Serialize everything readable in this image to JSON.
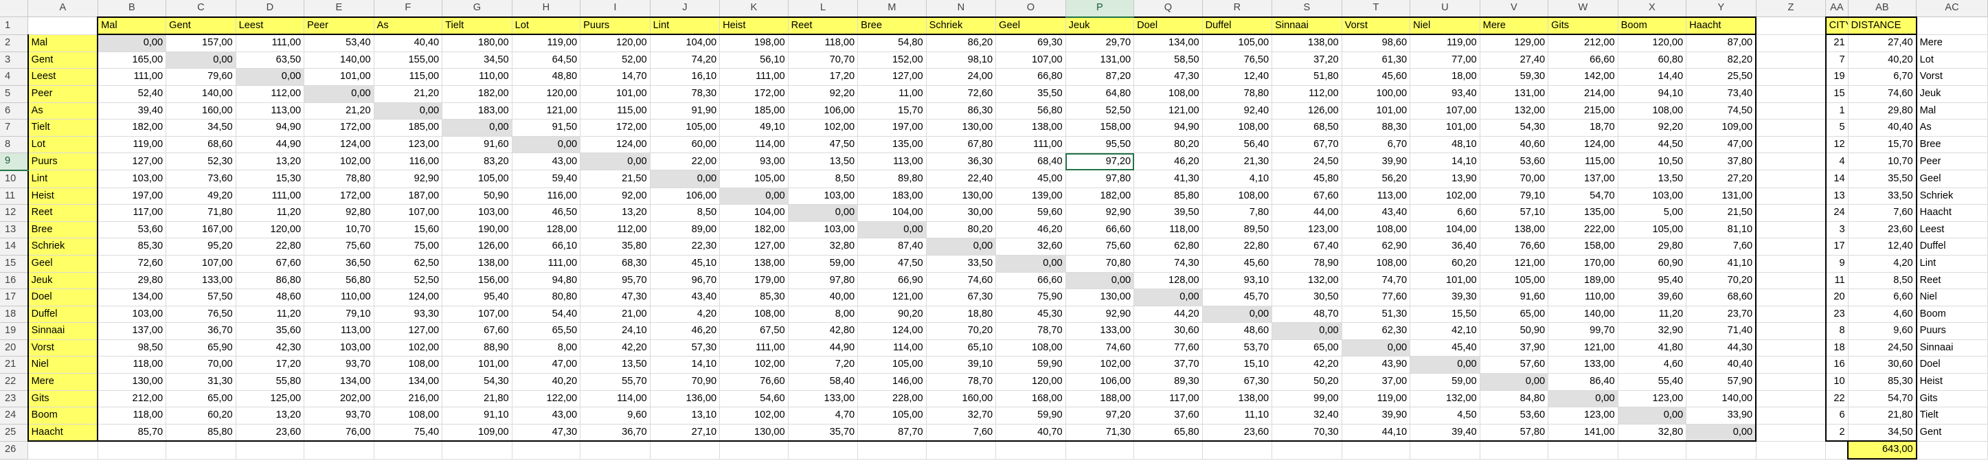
{
  "sheet": {
    "columns": [
      "A",
      "B",
      "C",
      "D",
      "E",
      "F",
      "G",
      "H",
      "I",
      "J",
      "K",
      "L",
      "M",
      "N",
      "O",
      "P",
      "Q",
      "R",
      "S",
      "T",
      "U",
      "V",
      "W",
      "X",
      "Y",
      "Z",
      "AA",
      "AB",
      "AC"
    ],
    "selected_cell": "P9",
    "header_row": [
      "",
      "Mal",
      "Gent",
      "Leest",
      "Peer",
      "As",
      "Tielt",
      "Lot",
      "Puurs",
      "Lint",
      "Heist",
      "Reet",
      "Bree",
      "Schriek",
      "Geel",
      "Jeuk",
      "Doel",
      "Duffel",
      "Sinnaai",
      "Vorst",
      "Niel",
      "Mere",
      "Gits",
      "Boom",
      "Haacht",
      "",
      "CITY",
      "DISTANCE",
      ""
    ],
    "cities": [
      "Mal",
      "Gent",
      "Leest",
      "Peer",
      "As",
      "Tielt",
      "Lot",
      "Puurs",
      "Lint",
      "Heist",
      "Reet",
      "Bree",
      "Schriek",
      "Geel",
      "Jeuk",
      "Doel",
      "Duffel",
      "Sinnaai",
      "Vorst",
      "Niel",
      "Mere",
      "Gits",
      "Boom",
      "Haacht"
    ],
    "matrix": [
      [
        "0,00",
        "157,00",
        "111,00",
        "53,40",
        "40,40",
        "180,00",
        "119,00",
        "120,00",
        "104,00",
        "198,00",
        "118,00",
        "54,80",
        "86,20",
        "69,30",
        "29,70",
        "134,00",
        "105,00",
        "138,00",
        "98,60",
        "119,00",
        "129,00",
        "212,00",
        "120,00",
        "87,00"
      ],
      [
        "165,00",
        "0,00",
        "63,50",
        "140,00",
        "155,00",
        "34,50",
        "64,50",
        "52,00",
        "74,20",
        "56,10",
        "70,70",
        "152,00",
        "98,10",
        "107,00",
        "131,00",
        "58,50",
        "76,50",
        "37,20",
        "61,30",
        "77,00",
        "27,40",
        "66,60",
        "60,80",
        "82,20"
      ],
      [
        "111,00",
        "79,60",
        "0,00",
        "101,00",
        "115,00",
        "110,00",
        "48,80",
        "14,70",
        "16,10",
        "111,00",
        "17,20",
        "127,00",
        "24,00",
        "66,80",
        "87,20",
        "47,30",
        "12,40",
        "51,80",
        "45,60",
        "18,00",
        "59,30",
        "142,00",
        "14,40",
        "25,50"
      ],
      [
        "52,40",
        "140,00",
        "112,00",
        "0,00",
        "21,20",
        "182,00",
        "120,00",
        "101,00",
        "78,30",
        "172,00",
        "92,20",
        "11,00",
        "72,60",
        "35,50",
        "64,80",
        "108,00",
        "78,80",
        "112,00",
        "100,00",
        "93,40",
        "131,00",
        "214,00",
        "94,10",
        "73,40"
      ],
      [
        "39,40",
        "160,00",
        "113,00",
        "21,20",
        "0,00",
        "183,00",
        "121,00",
        "115,00",
        "91,90",
        "185,00",
        "106,00",
        "15,70",
        "86,30",
        "56,80",
        "52,50",
        "121,00",
        "92,40",
        "126,00",
        "101,00",
        "107,00",
        "132,00",
        "215,00",
        "108,00",
        "74,50"
      ],
      [
        "182,00",
        "34,50",
        "94,90",
        "172,00",
        "185,00",
        "0,00",
        "91,50",
        "172,00",
        "105,00",
        "49,10",
        "102,00",
        "197,00",
        "130,00",
        "138,00",
        "158,00",
        "94,90",
        "108,00",
        "68,50",
        "88,30",
        "101,00",
        "54,30",
        "18,70",
        "92,20",
        "109,00"
      ],
      [
        "119,00",
        "68,60",
        "44,90",
        "124,00",
        "123,00",
        "91,60",
        "0,00",
        "124,00",
        "60,00",
        "114,00",
        "47,50",
        "135,00",
        "67,80",
        "111,00",
        "95,50",
        "80,20",
        "56,40",
        "67,70",
        "6,70",
        "48,10",
        "40,60",
        "124,00",
        "44,50",
        "47,00"
      ],
      [
        "127,00",
        "52,30",
        "13,20",
        "102,00",
        "116,00",
        "83,20",
        "43,00",
        "0,00",
        "22,00",
        "93,00",
        "13,50",
        "113,00",
        "36,30",
        "68,40",
        "97,20",
        "46,20",
        "21,30",
        "24,50",
        "39,90",
        "14,10",
        "53,60",
        "115,00",
        "10,50",
        "37,80"
      ],
      [
        "103,00",
        "73,60",
        "15,30",
        "78,80",
        "92,90",
        "105,00",
        "59,40",
        "21,50",
        "0,00",
        "105,00",
        "8,50",
        "89,80",
        "22,40",
        "45,00",
        "97,80",
        "41,30",
        "4,10",
        "45,80",
        "56,20",
        "13,90",
        "70,00",
        "137,00",
        "13,50",
        "27,20"
      ],
      [
        "197,00",
        "49,20",
        "111,00",
        "172,00",
        "187,00",
        "50,90",
        "116,00",
        "92,00",
        "106,00",
        "0,00",
        "103,00",
        "183,00",
        "130,00",
        "139,00",
        "182,00",
        "85,80",
        "108,00",
        "67,60",
        "113,00",
        "102,00",
        "79,10",
        "54,70",
        "103,00",
        "131,00"
      ],
      [
        "117,00",
        "71,80",
        "11,20",
        "92,80",
        "107,00",
        "103,00",
        "46,50",
        "13,20",
        "8,50",
        "104,00",
        "0,00",
        "104,00",
        "30,00",
        "59,60",
        "92,90",
        "39,50",
        "7,80",
        "44,00",
        "43,40",
        "6,60",
        "57,10",
        "135,00",
        "5,00",
        "21,50"
      ],
      [
        "53,60",
        "167,00",
        "120,00",
        "10,70",
        "15,60",
        "190,00",
        "128,00",
        "112,00",
        "89,00",
        "182,00",
        "103,00",
        "0,00",
        "80,20",
        "46,20",
        "66,60",
        "118,00",
        "89,50",
        "123,00",
        "108,00",
        "104,00",
        "138,00",
        "222,00",
        "105,00",
        "81,10"
      ],
      [
        "85,30",
        "95,20",
        "22,80",
        "75,60",
        "75,00",
        "126,00",
        "66,10",
        "35,80",
        "22,30",
        "127,00",
        "32,80",
        "87,40",
        "0,00",
        "32,60",
        "75,60",
        "62,80",
        "22,80",
        "67,40",
        "62,90",
        "36,40",
        "76,60",
        "158,00",
        "29,80",
        "7,60"
      ],
      [
        "72,60",
        "107,00",
        "67,60",
        "36,50",
        "62,50",
        "138,00",
        "111,00",
        "68,30",
        "45,10",
        "138,00",
        "59,00",
        "47,50",
        "33,50",
        "0,00",
        "70,80",
        "74,30",
        "45,60",
        "78,90",
        "108,00",
        "60,20",
        "121,00",
        "170,00",
        "60,90",
        "41,10"
      ],
      [
        "29,80",
        "133,00",
        "86,80",
        "56,80",
        "52,50",
        "156,00",
        "94,80",
        "95,70",
        "96,70",
        "179,00",
        "97,80",
        "66,90",
        "74,60",
        "66,60",
        "0,00",
        "128,00",
        "93,10",
        "132,00",
        "74,70",
        "101,00",
        "105,00",
        "189,00",
        "95,40",
        "70,20"
      ],
      [
        "134,00",
        "57,50",
        "48,60",
        "110,00",
        "124,00",
        "95,40",
        "80,80",
        "47,30",
        "43,40",
        "85,30",
        "40,00",
        "121,00",
        "67,30",
        "75,90",
        "130,00",
        "0,00",
        "45,70",
        "30,50",
        "77,60",
        "39,30",
        "91,60",
        "110,00",
        "39,60",
        "68,60"
      ],
      [
        "103,00",
        "76,50",
        "11,20",
        "79,10",
        "93,30",
        "107,00",
        "54,40",
        "21,00",
        "4,20",
        "108,00",
        "8,00",
        "90,20",
        "18,80",
        "45,30",
        "92,90",
        "44,20",
        "0,00",
        "48,70",
        "51,30",
        "15,50",
        "65,00",
        "140,00",
        "11,20",
        "23,70"
      ],
      [
        "137,00",
        "36,70",
        "35,60",
        "113,00",
        "127,00",
        "67,60",
        "65,50",
        "24,10",
        "46,20",
        "67,50",
        "42,80",
        "124,00",
        "70,20",
        "78,70",
        "133,00",
        "30,60",
        "48,60",
        "0,00",
        "62,30",
        "42,10",
        "50,90",
        "99,70",
        "32,90",
        "71,40"
      ],
      [
        "98,50",
        "65,90",
        "42,30",
        "103,00",
        "102,00",
        "88,90",
        "8,00",
        "42,20",
        "57,30",
        "111,00",
        "44,90",
        "114,00",
        "65,10",
        "108,00",
        "74,60",
        "77,60",
        "53,70",
        "65,00",
        "0,00",
        "45,40",
        "37,90",
        "121,00",
        "41,80",
        "44,30"
      ],
      [
        "118,00",
        "70,00",
        "17,20",
        "93,70",
        "108,00",
        "101,00",
        "47,00",
        "13,50",
        "14,10",
        "102,00",
        "7,20",
        "105,00",
        "39,10",
        "59,90",
        "102,00",
        "37,70",
        "15,10",
        "42,20",
        "43,90",
        "0,00",
        "57,60",
        "133,00",
        "4,60",
        "40,40"
      ],
      [
        "130,00",
        "31,30",
        "55,80",
        "134,00",
        "134,00",
        "54,30",
        "40,20",
        "55,70",
        "70,90",
        "76,60",
        "58,40",
        "146,00",
        "78,70",
        "120,00",
        "106,00",
        "89,30",
        "67,30",
        "50,20",
        "37,00",
        "59,00",
        "0,00",
        "86,40",
        "55,40",
        "57,90"
      ],
      [
        "212,00",
        "65,00",
        "125,00",
        "202,00",
        "216,00",
        "21,80",
        "122,00",
        "114,00",
        "136,00",
        "54,60",
        "133,00",
        "228,00",
        "160,00",
        "168,00",
        "188,00",
        "117,00",
        "138,00",
        "99,00",
        "119,00",
        "132,00",
        "84,80",
        "0,00",
        "123,00",
        "140,00"
      ],
      [
        "118,00",
        "60,20",
        "13,20",
        "93,70",
        "108,00",
        "91,10",
        "43,00",
        "9,60",
        "13,10",
        "102,00",
        "4,70",
        "105,00",
        "32,70",
        "59,90",
        "97,20",
        "37,60",
        "11,10",
        "32,40",
        "39,90",
        "4,50",
        "53,60",
        "123,00",
        "0,00",
        "33,90"
      ],
      [
        "85,70",
        "85,80",
        "23,60",
        "76,00",
        "75,40",
        "109,00",
        "47,30",
        "36,70",
        "27,10",
        "130,00",
        "35,70",
        "87,70",
        "7,60",
        "40,70",
        "71,30",
        "65,80",
        "23,60",
        "70,30",
        "44,10",
        "39,40",
        "57,80",
        "141,00",
        "32,80",
        "0,00"
      ]
    ],
    "route": [
      {
        "city": "21",
        "distance": "27,40",
        "name": "Mere"
      },
      {
        "city": "7",
        "distance": "40,20",
        "name": "Lot"
      },
      {
        "city": "19",
        "distance": "6,70",
        "name": "Vorst"
      },
      {
        "city": "15",
        "distance": "74,60",
        "name": "Jeuk"
      },
      {
        "city": "1",
        "distance": "29,80",
        "name": "Mal"
      },
      {
        "city": "5",
        "distance": "40,40",
        "name": "As"
      },
      {
        "city": "12",
        "distance": "15,70",
        "name": "Bree"
      },
      {
        "city": "4",
        "distance": "10,70",
        "name": "Peer"
      },
      {
        "city": "14",
        "distance": "35,50",
        "name": "Geel"
      },
      {
        "city": "13",
        "distance": "33,50",
        "name": "Schriek"
      },
      {
        "city": "24",
        "distance": "7,60",
        "name": "Haacht"
      },
      {
        "city": "3",
        "distance": "23,60",
        "name": "Leest"
      },
      {
        "city": "17",
        "distance": "12,40",
        "name": "Duffel"
      },
      {
        "city": "9",
        "distance": "4,20",
        "name": "Lint"
      },
      {
        "city": "11",
        "distance": "8,50",
        "name": "Reet"
      },
      {
        "city": "20",
        "distance": "6,60",
        "name": "Niel"
      },
      {
        "city": "23",
        "distance": "4,60",
        "name": "Boom"
      },
      {
        "city": "8",
        "distance": "9,60",
        "name": "Puurs"
      },
      {
        "city": "18",
        "distance": "24,50",
        "name": "Sinnaai"
      },
      {
        "city": "16",
        "distance": "30,60",
        "name": "Doel"
      },
      {
        "city": "10",
        "distance": "85,30",
        "name": "Heist"
      },
      {
        "city": "22",
        "distance": "54,70",
        "name": "Gits"
      },
      {
        "city": "6",
        "distance": "21,80",
        "name": "Tielt"
      },
      {
        "city": "2",
        "distance": "34,50",
        "name": "Gent"
      }
    ],
    "total_distance": "643,00",
    "colors": {
      "yellow": "#ffff66",
      "gray": "#e0e0e0",
      "selection": "#217346"
    }
  }
}
